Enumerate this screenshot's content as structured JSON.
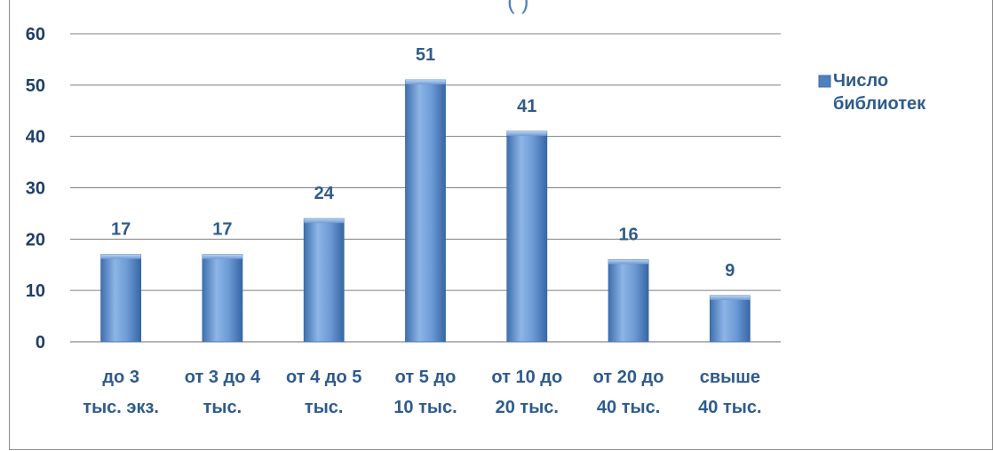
{
  "chart_data": {
    "type": "bar",
    "title_fragment": "(                  )",
    "categories": [
      [
        "до 3",
        "тыс. экз."
      ],
      [
        "от 3 до 4",
        "тыс."
      ],
      [
        "от 4 до 5",
        "тыс."
      ],
      [
        "от 5 до",
        "10 тыс."
      ],
      [
        "от 10 до",
        "20 тыс."
      ],
      [
        "от 20 до",
        "40 тыс."
      ],
      [
        "свыше",
        "40 тыс."
      ]
    ],
    "series": [
      {
        "name": "Число библиотек",
        "values": [
          17,
          17,
          24,
          51,
          41,
          16,
          9
        ]
      }
    ],
    "legend_lines": [
      "Число",
      "библиотек"
    ],
    "yticks": [
      "0",
      "10",
      "20",
      "30",
      "40",
      "50",
      "60"
    ],
    "ylim": [
      0,
      60
    ],
    "grid": true,
    "legend_position": "top-right",
    "data_labels": true,
    "colors": {
      "bar": "#4f81bd",
      "bar_light": "#8fb3e3",
      "bar_dark": "#3a6aa6",
      "text": "#2e5b8d",
      "axis_text": "#1f3f67"
    }
  }
}
